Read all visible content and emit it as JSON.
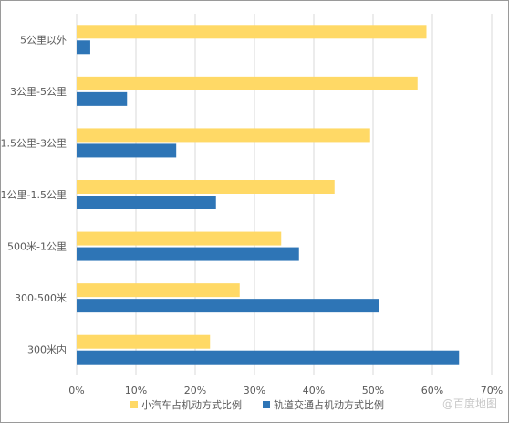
{
  "chart_data": {
    "type": "bar",
    "orientation": "horizontal",
    "categories": [
      "5公里以外",
      "3公里-5公里",
      "1.5公里-3公里",
      "1公里-1.5公里",
      "500米-1公里",
      "300-500米",
      "300米内"
    ],
    "series": [
      {
        "name": "小汽车占机动方式比例",
        "color": "#FFD966",
        "values": [
          59,
          57.5,
          49.5,
          43.5,
          34.5,
          27.5,
          22.5
        ]
      },
      {
        "name": "轨道交通占机动方式比例",
        "color": "#2E75B6",
        "values": [
          2.3,
          8.5,
          16.8,
          23.5,
          37.5,
          51,
          64.5
        ]
      }
    ],
    "xlim": [
      0,
      70
    ],
    "xticks": [
      "0%",
      "10%",
      "20%",
      "30%",
      "40%",
      "50%",
      "60%",
      "70%"
    ],
    "grid": true,
    "legend_position": "bottom"
  },
  "watermark": "@百度地图",
  "colors": {
    "grid": "#d9d9d9",
    "axis_text": "#595959",
    "border": "#9a9a9a"
  }
}
